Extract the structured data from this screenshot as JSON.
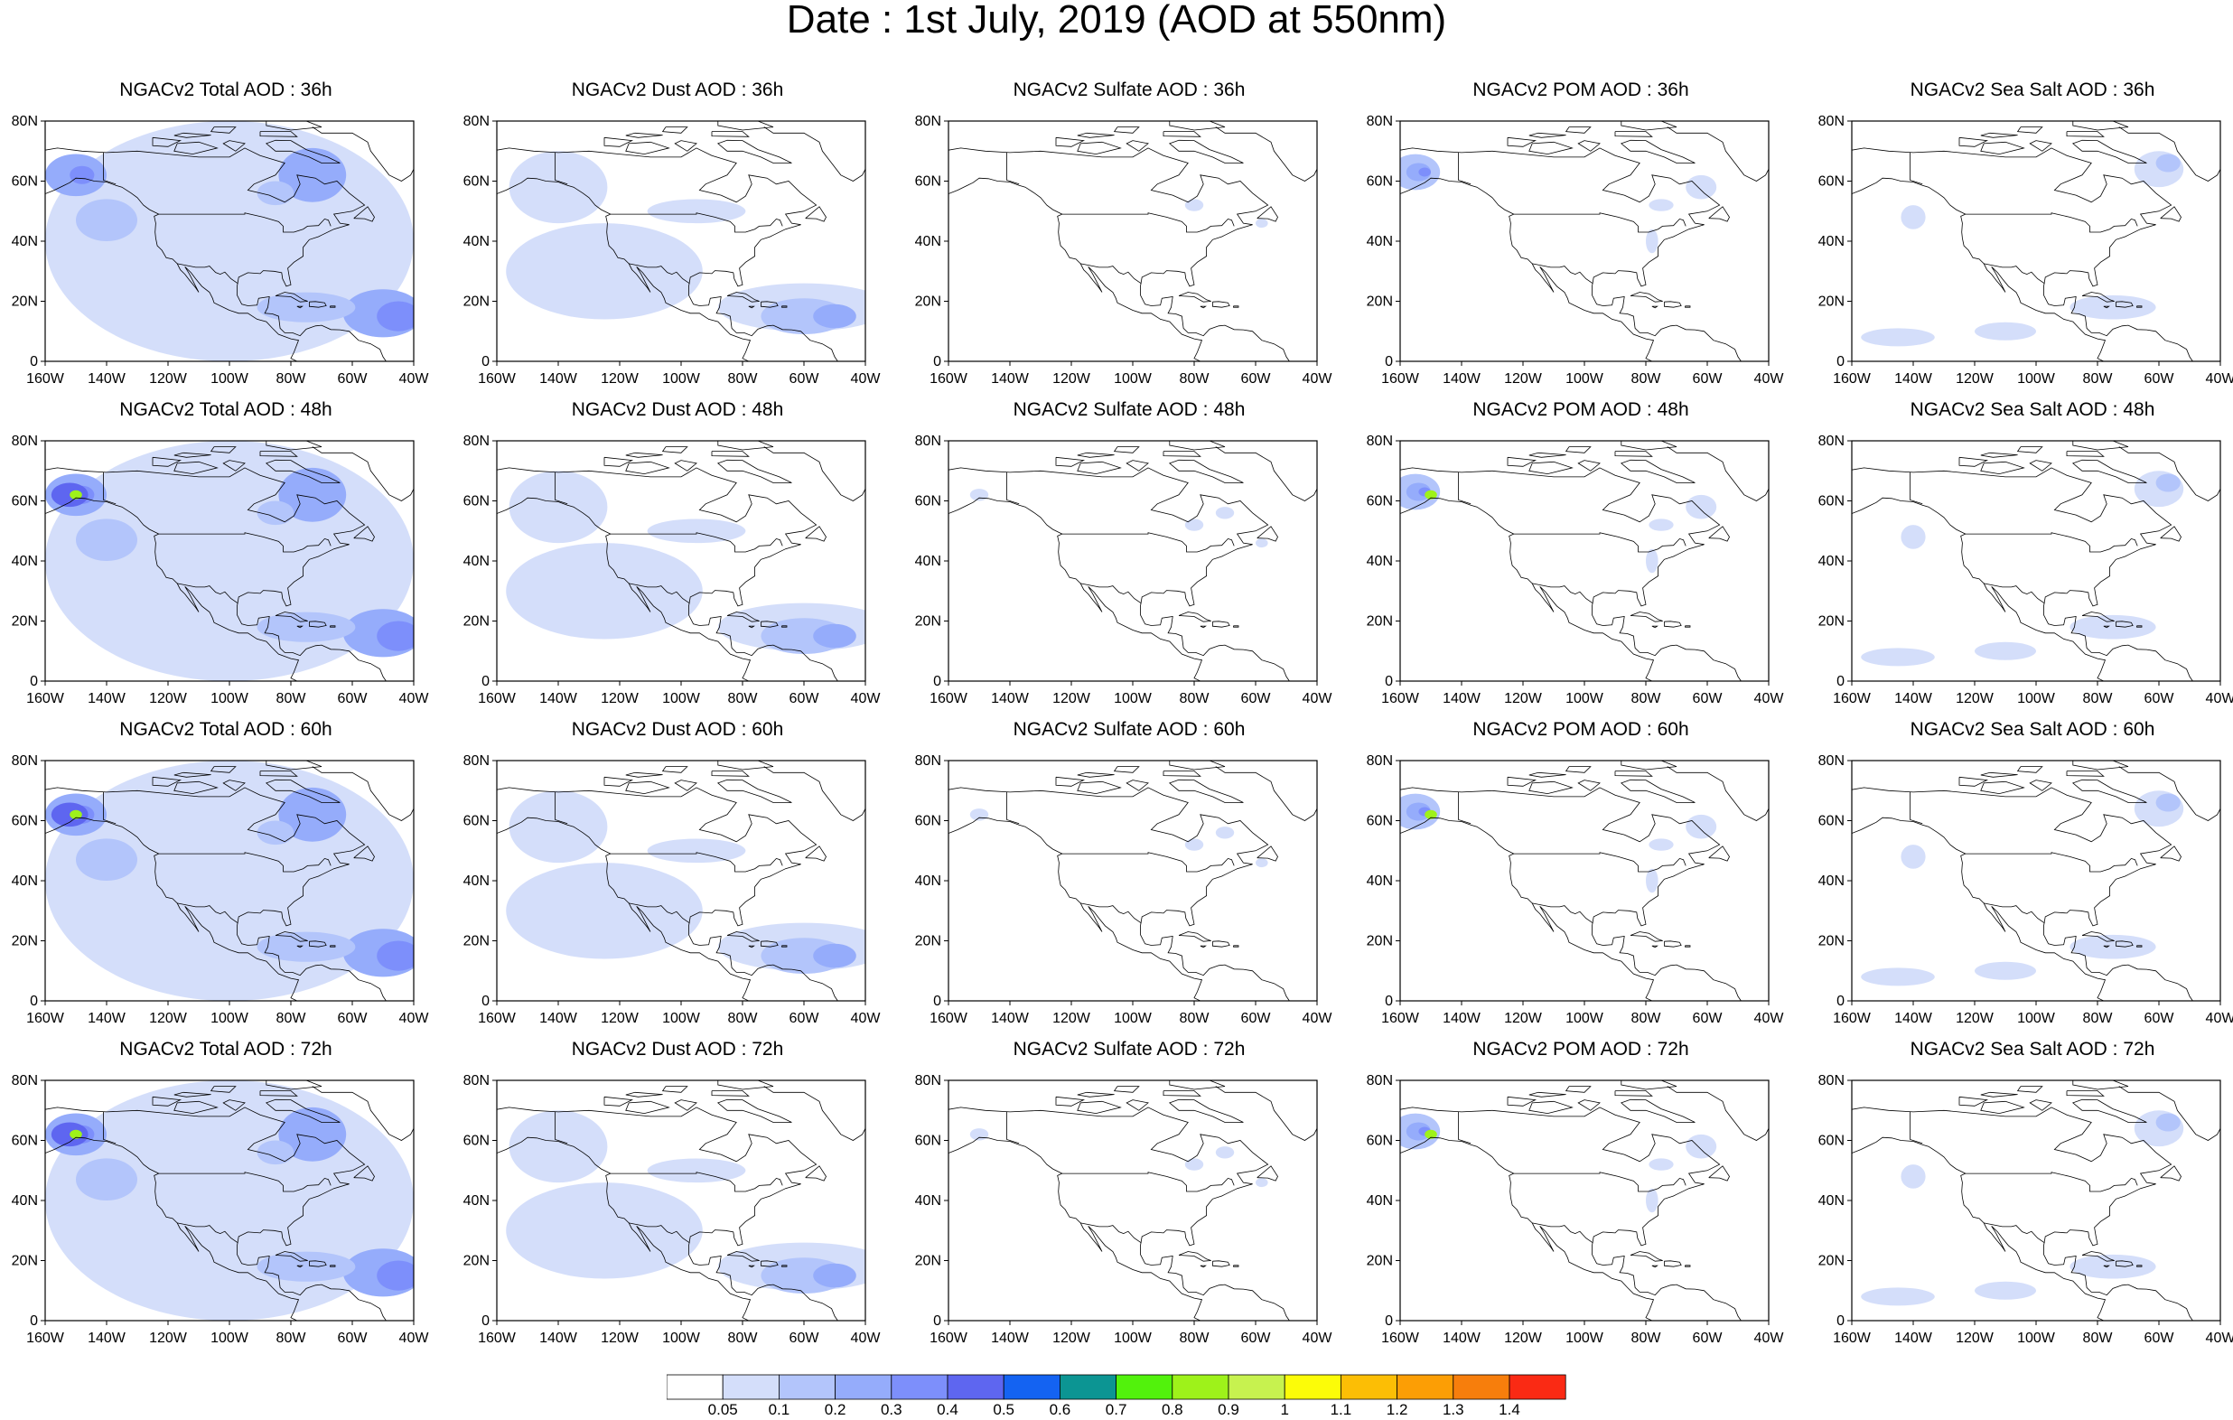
{
  "title": "Date : 1st July, 2019 (AOD at 550nm)",
  "lat_labels": [
    "0",
    "20N",
    "40N",
    "60N",
    "80N"
  ],
  "lon_labels": [
    "160W",
    "140W",
    "120W",
    "100W",
    "80W",
    "60W",
    "40W"
  ],
  "panels": [
    {
      "title": "NGACv2 Total AOD : 36h",
      "type": "total"
    },
    {
      "title": "NGACv2 Dust AOD : 36h",
      "type": "dust"
    },
    {
      "title": "NGACv2 Sulfate AOD : 36h",
      "type": "sulfate"
    },
    {
      "title": "NGACv2 POM AOD : 36h",
      "type": "pom"
    },
    {
      "title": "NGACv2 Sea Salt AOD : 36h",
      "type": "seasalt"
    },
    {
      "title": "NGACv2 Total AOD : 48h",
      "type": "total"
    },
    {
      "title": "NGACv2 Dust AOD : 48h",
      "type": "dust"
    },
    {
      "title": "NGACv2 Sulfate AOD : 48h",
      "type": "sulfate"
    },
    {
      "title": "NGACv2 POM AOD : 48h",
      "type": "pom"
    },
    {
      "title": "NGACv2 Sea Salt AOD : 48h",
      "type": "seasalt"
    },
    {
      "title": "NGACv2 Total AOD : 60h",
      "type": "total"
    },
    {
      "title": "NGACv2 Dust AOD : 60h",
      "type": "dust"
    },
    {
      "title": "NGACv2 Sulfate AOD : 60h",
      "type": "sulfate"
    },
    {
      "title": "NGACv2 POM AOD : 60h",
      "type": "pom"
    },
    {
      "title": "NGACv2 Sea Salt AOD : 60h",
      "type": "seasalt"
    },
    {
      "title": "NGACv2 Total AOD : 72h",
      "type": "total"
    },
    {
      "title": "NGACv2 Dust AOD : 72h",
      "type": "dust"
    },
    {
      "title": "NGACv2 Sulfate AOD : 72h",
      "type": "sulfate"
    },
    {
      "title": "NGACv2 POM AOD : 72h",
      "type": "pom"
    },
    {
      "title": "NGACv2 Sea Salt  AOD : 72h",
      "type": "seasalt"
    }
  ],
  "colorbar": {
    "colors": [
      "#ffffff",
      "#d4defa",
      "#b3c5fb",
      "#95acfb",
      "#7d8ffb",
      "#5e66f0",
      "#1463f2",
      "#0c9593",
      "#52f20c",
      "#9ef21a",
      "#c7f24f",
      "#fcfc08",
      "#fcbe05",
      "#fc9e05",
      "#f77e0c",
      "#fa2a14"
    ],
    "labels": [
      "0.05",
      "0.1",
      "0.2",
      "0.3",
      "0.4",
      "0.5",
      "0.6",
      "0.7",
      "0.8",
      "0.9",
      "1",
      "1.1",
      "1.2",
      "1.3",
      "1.4"
    ]
  }
}
